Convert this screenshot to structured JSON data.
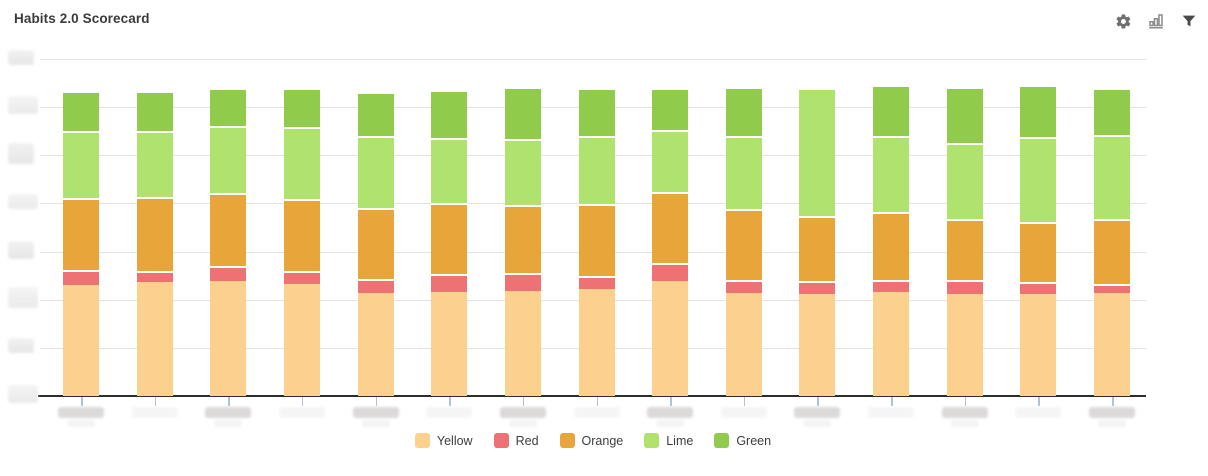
{
  "header": {
    "title": "Habits 2.0 Scorecard",
    "icons": [
      {
        "name": "settings-gear"
      },
      {
        "name": "chart-type-bar"
      },
      {
        "name": "filter-funnel"
      }
    ]
  },
  "chart_data": {
    "type": "bar",
    "stacked": true,
    "title": "Habits 2.0 Scorecard",
    "category_count": 15,
    "x_tick_labels_redacted": true,
    "y_tick_labels_redacted": true,
    "y_axis": {
      "ylim": [
        0,
        7
      ],
      "gridline_interval": 1,
      "gridlines_on": true,
      "note": "values expressed in gridline units; axis labels blurred in source"
    },
    "legend": [
      "Yellow",
      "Red",
      "Orange",
      "Lime",
      "Green"
    ],
    "legend_position": "bottom",
    "series": [
      {
        "name": "Yellow",
        "color": "#FCD18D",
        "values": [
          2.31,
          2.37,
          2.4,
          2.33,
          2.15,
          2.17,
          2.18,
          2.22,
          2.4,
          2.15,
          2.11,
          2.17,
          2.13,
          2.13,
          2.15
        ]
      },
      {
        "name": "Red",
        "color": "#EE7173",
        "values": [
          0.31,
          0.23,
          0.31,
          0.26,
          0.28,
          0.36,
          0.37,
          0.28,
          0.36,
          0.26,
          0.28,
          0.24,
          0.29,
          0.23,
          0.17
        ]
      },
      {
        "name": "Orange",
        "color": "#E8A63A",
        "values": [
          1.5,
          1.54,
          1.5,
          1.51,
          1.47,
          1.47,
          1.42,
          1.49,
          1.47,
          1.47,
          1.34,
          1.41,
          1.25,
          1.25,
          1.35
        ]
      },
      {
        "name": "Lime",
        "color": "#AFE36E",
        "values": [
          1.39,
          1.36,
          1.4,
          1.48,
          1.5,
          1.36,
          1.37,
          1.41,
          1.29,
          1.52,
          2.67,
          1.58,
          1.59,
          1.77,
          1.75
        ]
      },
      {
        "name": "Green",
        "color": "#90CB4B",
        "values": [
          0.83,
          0.83,
          0.78,
          0.82,
          0.92,
          0.99,
          1.07,
          1.0,
          0.88,
          1.01,
          0.0,
          1.06,
          1.17,
          1.08,
          0.97
        ]
      }
    ],
    "colors": {
      "gridline": "#E2E2E5",
      "axis": "#2D2D2D",
      "tick": "#B3C2D2",
      "redacted_label": "#DCD9D9"
    }
  }
}
